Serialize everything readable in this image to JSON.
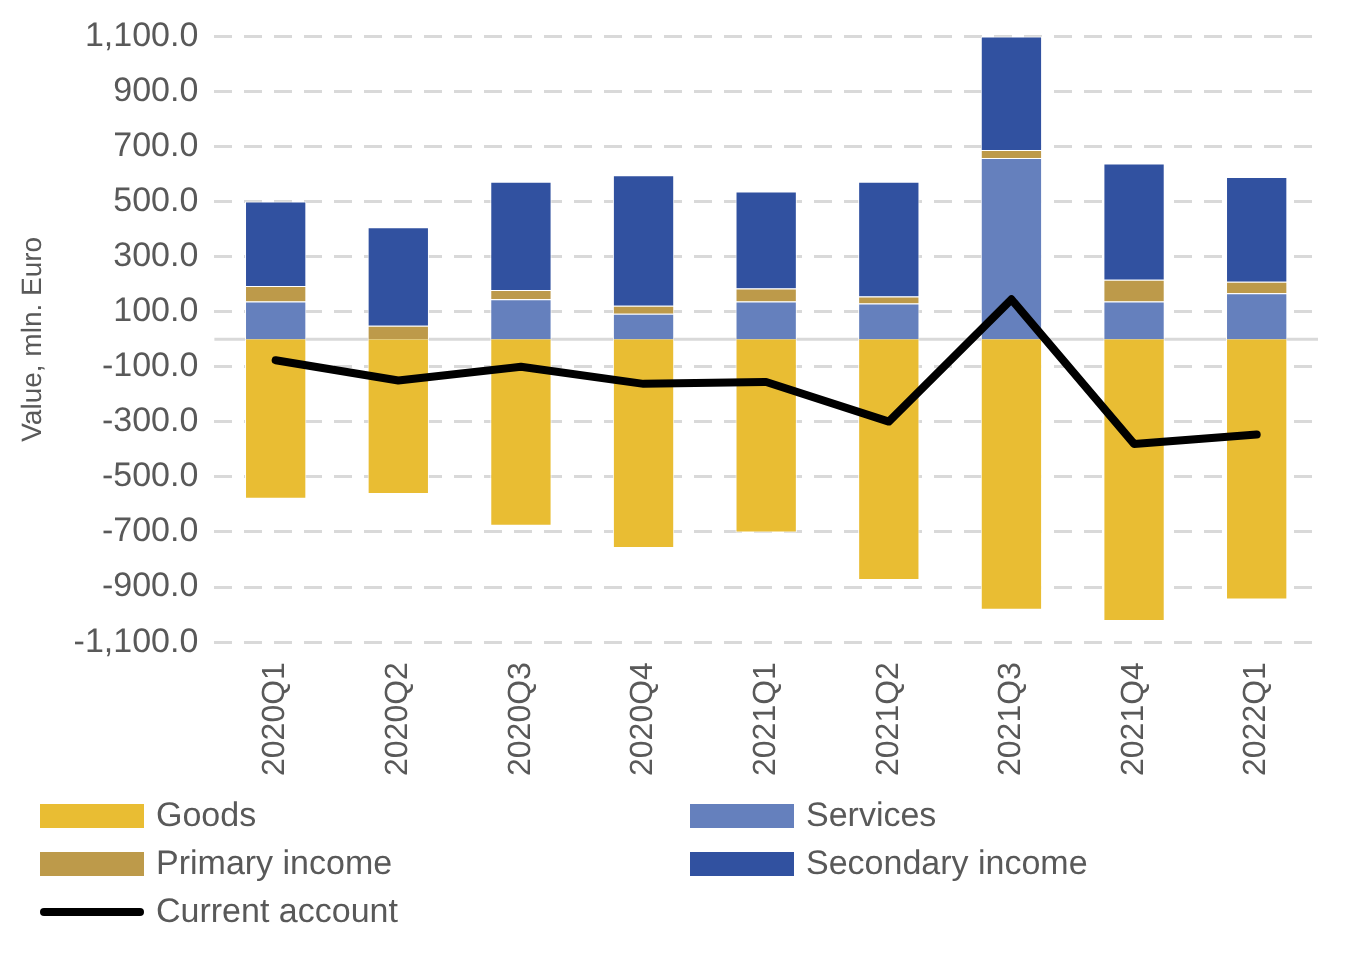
{
  "chart_data": {
    "type": "bar",
    "stacked": true,
    "ylabel": "Value, mln. Euro",
    "categories": [
      "2020Q1",
      "2020Q2",
      "2020Q3",
      "2020Q4",
      "2021Q1",
      "2021Q2",
      "2021Q3",
      "2021Q4",
      "2022Q1"
    ],
    "series": [
      {
        "name": "Goods",
        "color": "#e9bd33",
        "values": [
          -579,
          -562,
          -677,
          -758,
          -702,
          -874,
          -982,
          -1023,
          -945
        ]
      },
      {
        "name": "Services",
        "color": "#6580bd",
        "values": [
          137,
          0,
          145,
          93,
          137,
          130,
          658,
          137,
          167
        ]
      },
      {
        "name": "Primary income",
        "color": "#bd9a4a",
        "values": [
          56,
          49,
          34,
          29,
          47,
          25,
          29,
          79,
          42
        ]
      },
      {
        "name": "Secondary income",
        "color": "#3151a0",
        "values": [
          307,
          358,
          393,
          474,
          353,
          417,
          413,
          422,
          380
        ]
      },
      {
        "name": "Current account",
        "type": "line",
        "color": "#000000",
        "values": [
          -76,
          -150,
          -100,
          -162,
          -155,
          -299,
          145,
          -380,
          -346
        ]
      }
    ],
    "ylim": [
      -1100,
      1100
    ],
    "yticks": [
      {
        "value": -1100,
        "label": "-1,100.0"
      },
      {
        "value": -900,
        "label": "-900.0"
      },
      {
        "value": -700,
        "label": "-700.0"
      },
      {
        "value": -500,
        "label": "-500.0"
      },
      {
        "value": -300,
        "label": "-300.0"
      },
      {
        "value": -100,
        "label": "-100.0"
      },
      {
        "value": 100,
        "label": "100.0"
      },
      {
        "value": 300,
        "label": "300.0"
      },
      {
        "value": 500,
        "label": "500.0"
      },
      {
        "value": 700,
        "label": "700.0"
      },
      {
        "value": 900,
        "label": "900.0"
      },
      {
        "value": 1100,
        "label": "1,100.0"
      }
    ],
    "grid": "y",
    "legend": "bottom",
    "marker": "none",
    "line_style": "solid"
  }
}
